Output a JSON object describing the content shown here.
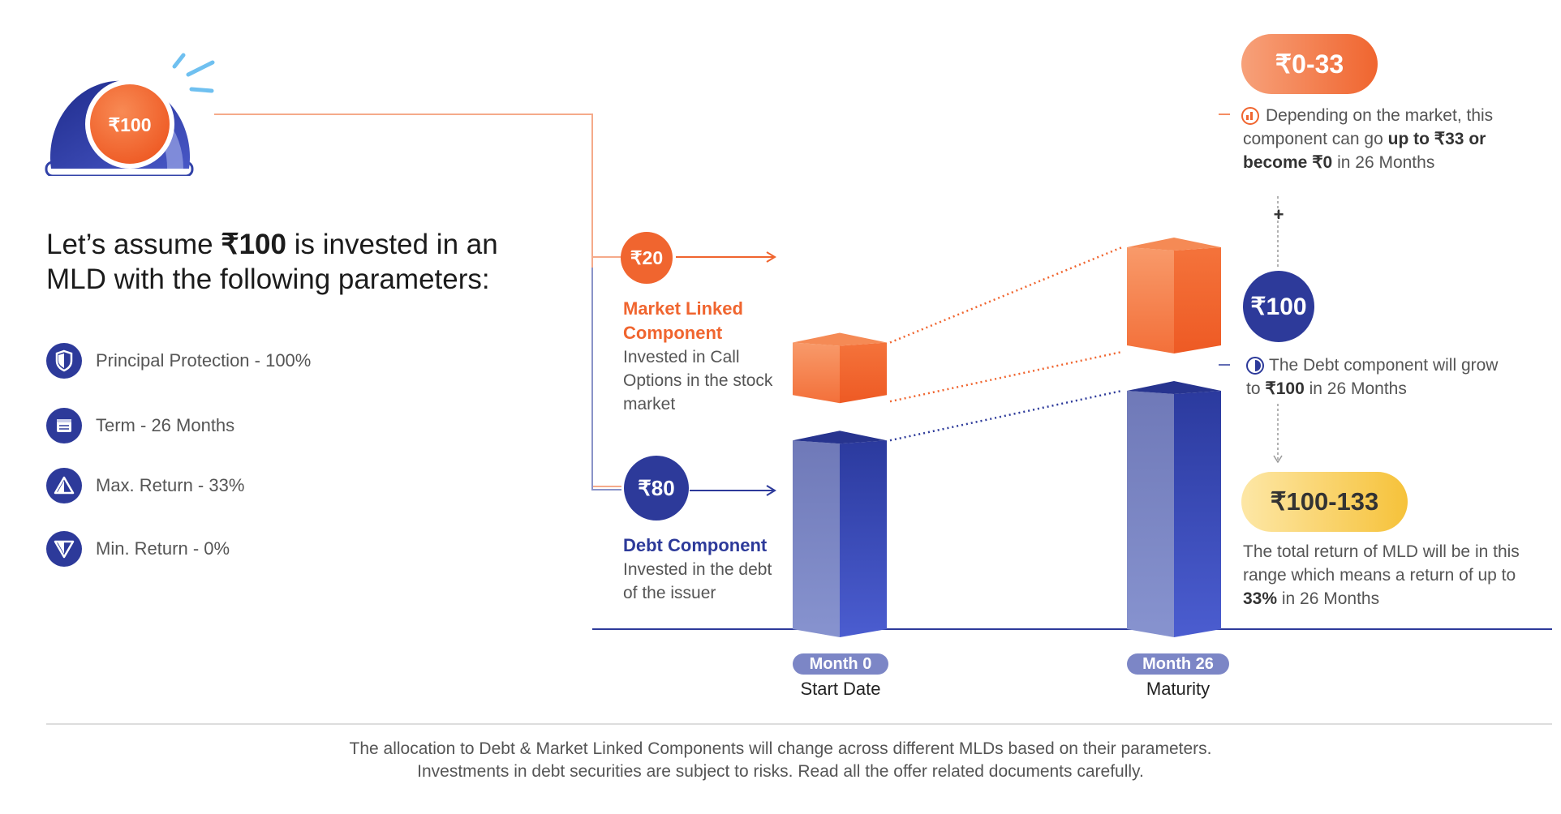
{
  "hero": {
    "amount": "₹100",
    "headline_pre": "Let’s assume ",
    "headline_amount": "₹100",
    "headline_post": " is invested in an MLD with the following parameters:"
  },
  "parameters": [
    {
      "label": "Principal Protection - 100%",
      "icon": "shield-icon"
    },
    {
      "label": "Term - 26  Months",
      "icon": "calendar-icon"
    },
    {
      "label": "Max. Return - 33%",
      "icon": "triangle-up-icon"
    },
    {
      "label": "Min. Return - 0%",
      "icon": "triangle-down-icon"
    }
  ],
  "market_component": {
    "amount": "₹20",
    "title": "Market Linked Component",
    "description": "Invested in Call Options in the stock market"
  },
  "debt_component": {
    "amount": "₹80",
    "title": "Debt Component",
    "description": "Invested in the debt of the issuer"
  },
  "axis": {
    "start": {
      "pill": "Month 0",
      "label": "Start Date"
    },
    "end": {
      "pill": "Month 26",
      "label": "Maturity"
    }
  },
  "outcomes": {
    "market": {
      "range": "₹0-33",
      "text_pre": "Depending on the market, this component can go ",
      "text_bold": "up to ₹33 or become ₹0",
      "text_post": " in 26 Months"
    },
    "plus": "+",
    "debt": {
      "amount": "₹100",
      "text_pre": "The Debt component will grow to ",
      "text_bold": "₹100",
      "text_post": " in 26 Months"
    },
    "total": {
      "range": "₹100-133",
      "text_pre": "The total return of MLD will be in this range which means a return of up to ",
      "text_bold": "33%",
      "text_post": " in 26 Months"
    }
  },
  "footnote": {
    "line1": "The allocation to Debt & Market Linked Components will change across different MLDs based on their parameters.",
    "line2": "Investments in debt securities are subject to risks. Read all the offer related documents carefully."
  },
  "chart_data": {
    "type": "bar",
    "title": "",
    "categories": [
      "Month 0",
      "Month 26"
    ],
    "category_labels": [
      "Start Date",
      "Maturity"
    ],
    "series": [
      {
        "name": "Debt Component",
        "values": [
          80,
          100
        ]
      },
      {
        "name": "Market Linked Component",
        "values": [
          20,
          33
        ]
      }
    ],
    "stacked": true,
    "xlabel": "",
    "ylabel": "",
    "ylim": [
      0,
      133
    ]
  },
  "colors": {
    "orange": "#f0652f",
    "orange_light": "#f89a6a",
    "navy": "#2d3a9a",
    "navy_light": "#7c8ac4",
    "yellow": "#f6c94a",
    "pill_bg": "#7c86c6"
  }
}
